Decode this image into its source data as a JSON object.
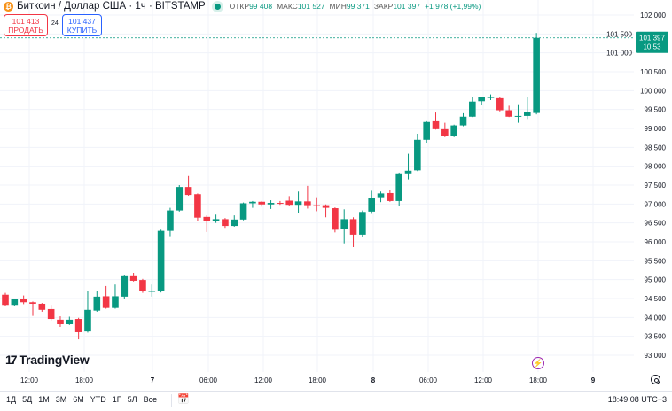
{
  "header": {
    "symbol_icon": "bitcoin-icon",
    "title": "Биткоин / Доллар США · 1ч · BITSTAMP",
    "market_status": "open",
    "ohlc": [
      {
        "label": "ОТКР",
        "value": "99 408"
      },
      {
        "label": "МАКС",
        "value": "101 527"
      },
      {
        "label": "МИН",
        "value": "99 371"
      },
      {
        "label": "ЗАКР",
        "value": "101 397"
      }
    ],
    "change": "+1 978 (+1,99%)"
  },
  "trade": {
    "sell_price": "101 413",
    "sell_label": "ПРОДАТЬ",
    "spread": "24",
    "buy_price": "101 437",
    "buy_label": "КУПИТЬ"
  },
  "price_tag": {
    "price": "101 397",
    "countdown": "10:53"
  },
  "logo": "TradingView",
  "colors": {
    "up": "#089981",
    "down": "#f23645",
    "grid": "#f0f3fa",
    "accent_purple": "#9c27b0"
  },
  "chart_data": {
    "type": "candlestick",
    "interval": "1h",
    "ylim": [
      93000,
      102000
    ],
    "y_ticks": [
      "102 000",
      "101 500",
      "101 000",
      "100 500",
      "100 000",
      "99 500",
      "99 000",
      "98 500",
      "98 000",
      "97 500",
      "97 000",
      "96 500",
      "96 000",
      "95 500",
      "95 000",
      "94 500",
      "94 000",
      "93 500",
      "93 000"
    ],
    "x_ticks": [
      {
        "label": "12:00",
        "bold": false
      },
      {
        "label": "18:00",
        "bold": false
      },
      {
        "label": "7",
        "bold": true
      },
      {
        "label": "06:00",
        "bold": false
      },
      {
        "label": "12:00",
        "bold": false
      },
      {
        "label": "18:00",
        "bold": false
      },
      {
        "label": "8",
        "bold": true
      },
      {
        "label": "06:00",
        "bold": false
      },
      {
        "label": "12:00",
        "bold": false
      },
      {
        "label": "18:00",
        "bold": false
      },
      {
        "label": "9",
        "bold": true
      }
    ],
    "first_candle": "6, 08:00",
    "last_price": 101397,
    "ohlc": [
      [
        94600,
        94650,
        94300,
        94330
      ],
      [
        94330,
        94500,
        94300,
        94480
      ],
      [
        94480,
        94580,
        94350,
        94400
      ],
      [
        94400,
        94420,
        94040,
        94360
      ],
      [
        94360,
        94380,
        94150,
        94200
      ],
      [
        94220,
        94330,
        93920,
        93960
      ],
      [
        93940,
        94030,
        93750,
        93820
      ],
      [
        93820,
        94020,
        93800,
        93940
      ],
      [
        93960,
        93990,
        93420,
        93610
      ],
      [
        93630,
        94690,
        93600,
        94200
      ],
      [
        94180,
        94690,
        94150,
        94550
      ],
      [
        94560,
        94830,
        94230,
        94250
      ],
      [
        94250,
        94870,
        94230,
        94560
      ],
      [
        94550,
        95120,
        94500,
        95090
      ],
      [
        95090,
        95180,
        94950,
        94970
      ],
      [
        94990,
        95020,
        94650,
        94690
      ],
      [
        94690,
        94870,
        94550,
        94700
      ],
      [
        94690,
        96320,
        94660,
        96290
      ],
      [
        96290,
        96900,
        96150,
        96830
      ],
      [
        96830,
        97500,
        96800,
        97450
      ],
      [
        97450,
        97740,
        97220,
        97240
      ],
      [
        97260,
        97280,
        96550,
        96640
      ],
      [
        96660,
        96700,
        96260,
        96540
      ],
      [
        96540,
        96720,
        96500,
        96600
      ],
      [
        96600,
        96630,
        96370,
        96420
      ],
      [
        96420,
        96700,
        96400,
        96590
      ],
      [
        96590,
        97040,
        96570,
        97020
      ],
      [
        97020,
        97080,
        96900,
        97060
      ],
      [
        97060,
        97080,
        96930,
        96990
      ],
      [
        96990,
        97100,
        96870,
        97030
      ],
      [
        97030,
        97080,
        96980,
        97020
      ],
      [
        97090,
        97210,
        96960,
        96980
      ],
      [
        96980,
        97330,
        96760,
        97070
      ],
      [
        97070,
        97480,
        96880,
        96970
      ],
      [
        96970,
        97180,
        96810,
        96960
      ],
      [
        96970,
        96990,
        96650,
        96900
      ],
      [
        96890,
        96910,
        96250,
        96320
      ],
      [
        96330,
        96860,
        95960,
        96600
      ],
      [
        96600,
        96650,
        95860,
        96190
      ],
      [
        96190,
        96830,
        96120,
        96790
      ],
      [
        96800,
        97350,
        96740,
        97160
      ],
      [
        97180,
        97330,
        97050,
        97280
      ],
      [
        97290,
        97380,
        97060,
        97080
      ],
      [
        97080,
        97830,
        96950,
        97810
      ],
      [
        97810,
        98330,
        97650,
        97880
      ],
      [
        97890,
        98860,
        97870,
        98700
      ],
      [
        98700,
        99190,
        98610,
        99170
      ],
      [
        99190,
        99420,
        98970,
        98980
      ],
      [
        98980,
        99150,
        98770,
        98790
      ],
      [
        98790,
        99100,
        98770,
        99080
      ],
      [
        99080,
        99400,
        99060,
        99310
      ],
      [
        99310,
        99830,
        99300,
        99710
      ],
      [
        99720,
        99840,
        99620,
        99830
      ],
      [
        99830,
        99900,
        99750,
        99830
      ],
      [
        99800,
        99830,
        99450,
        99480
      ],
      [
        99480,
        99600,
        99300,
        99310
      ],
      [
        99320,
        99640,
        99150,
        99330
      ],
      [
        99330,
        99840,
        99250,
        99430
      ],
      [
        99408,
        101527,
        99371,
        101397
      ]
    ]
  },
  "bottom": {
    "ranges": [
      "1Д",
      "5Д",
      "1М",
      "3М",
      "6М",
      "YTD",
      "1Г",
      "5Л",
      "Все"
    ],
    "clock": "18:49:08 UTC+3"
  }
}
